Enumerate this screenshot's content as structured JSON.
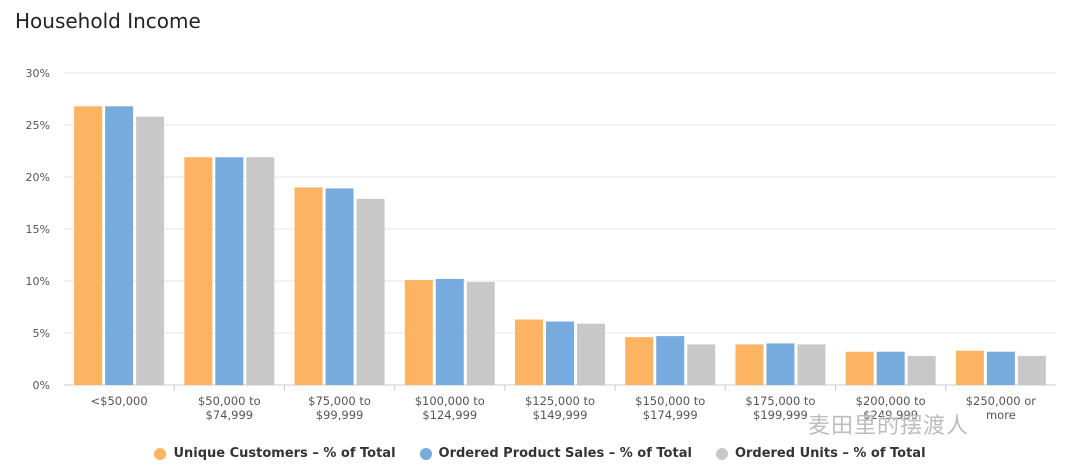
{
  "page_title": "Household Income",
  "watermark": "麦田里的摆渡人",
  "chart_data": {
    "type": "bar",
    "title": "Household Income",
    "xlabel": "",
    "ylabel": "",
    "ylim": [
      0,
      30
    ],
    "yticks": [
      "0%",
      "5%",
      "10%",
      "15%",
      "20%",
      "25%",
      "30%"
    ],
    "categories": [
      [
        "<$50,000"
      ],
      [
        "$50,000 to",
        "$74,999"
      ],
      [
        "$75,000 to",
        "$99,999"
      ],
      [
        "$100,000 to",
        "$124,999"
      ],
      [
        "$125,000 to",
        "$149,999"
      ],
      [
        "$150,000 to",
        "$174,999"
      ],
      [
        "$175,000 to",
        "$199,999"
      ],
      [
        "$200,000 to",
        "$249,999"
      ],
      [
        "$250,000 or",
        "more"
      ]
    ],
    "series": [
      {
        "name": "Unique Customers – % of Total",
        "color": "#FDB462",
        "values": [
          26.8,
          21.9,
          19.0,
          10.1,
          6.3,
          4.6,
          3.9,
          3.2,
          3.3
        ]
      },
      {
        "name": "Ordered Product Sales – % of Total",
        "color": "#77AADD",
        "values": [
          26.8,
          21.9,
          18.9,
          10.2,
          6.1,
          4.7,
          4.0,
          3.2,
          3.2
        ]
      },
      {
        "name": "Ordered Units – % of Total",
        "color": "#C8C8C8",
        "values": [
          25.8,
          21.9,
          17.9,
          9.9,
          5.9,
          3.9,
          3.9,
          2.8,
          2.8
        ]
      }
    ],
    "grid": true,
    "legend_position": "bottom"
  }
}
